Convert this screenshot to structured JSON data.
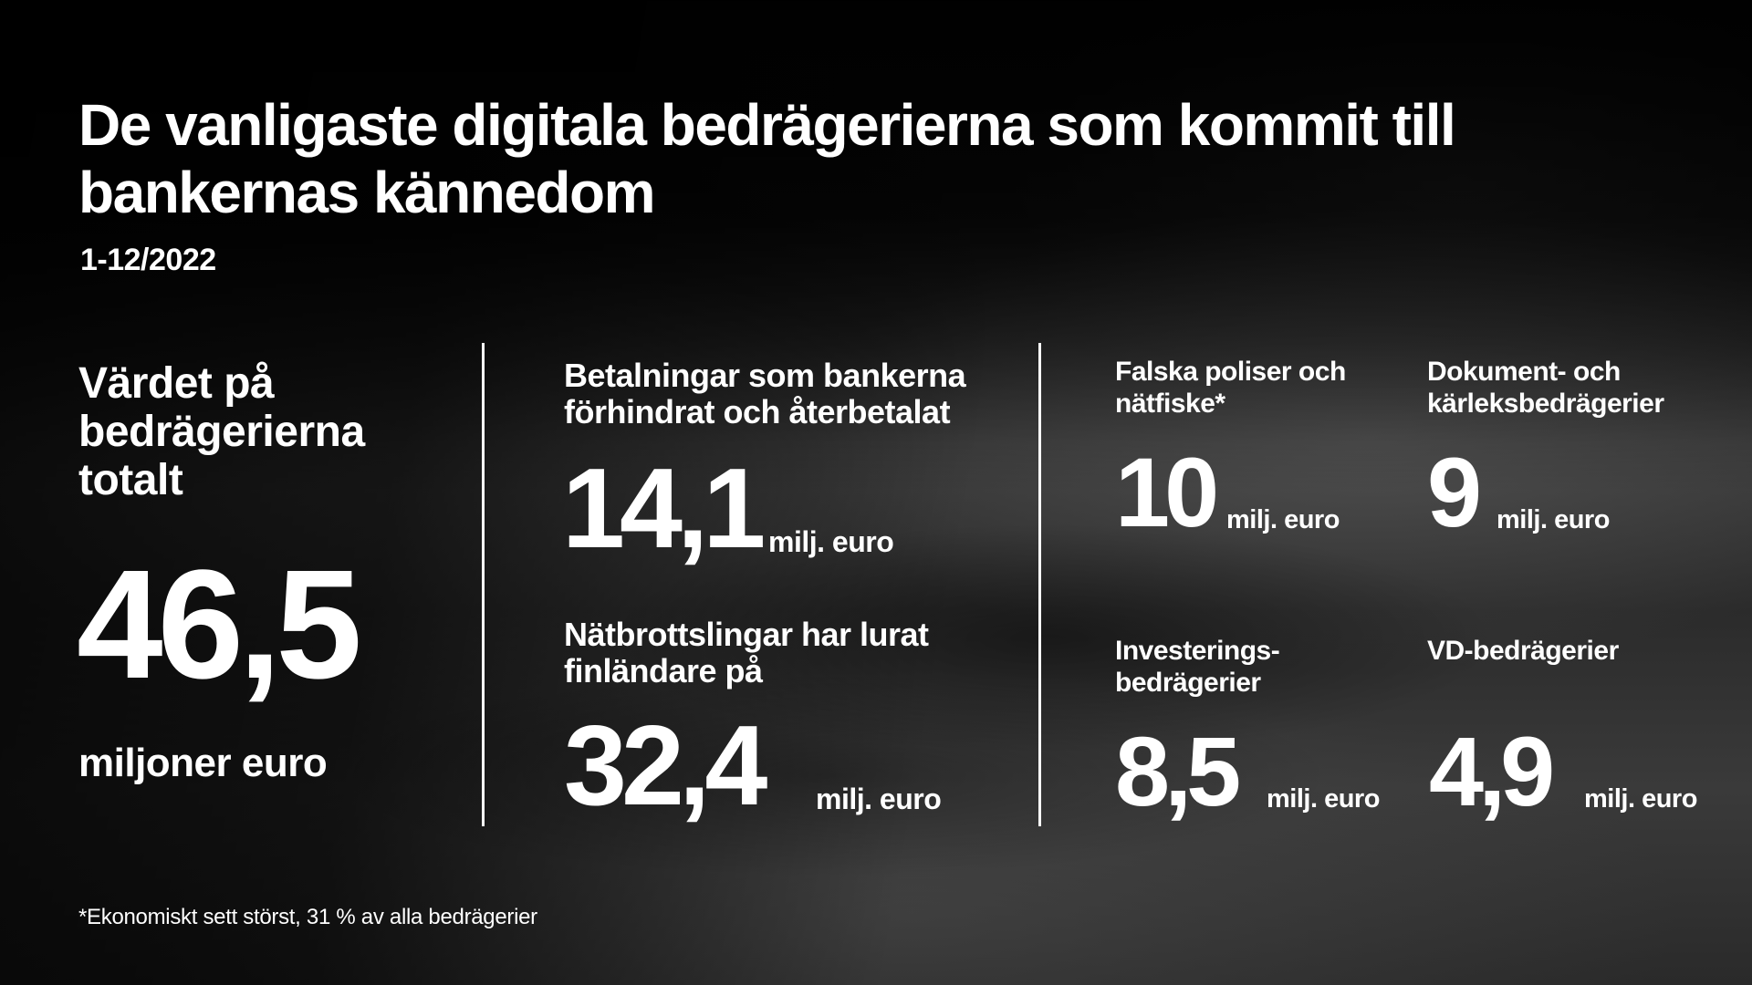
{
  "header": {
    "title": "De vanligaste digitala bedrägerierna som kommit till bankernas kännedom",
    "period": "1-12/2022"
  },
  "total": {
    "label": "Värdet på bedrägerierna totalt",
    "value": "46,5",
    "unit": "miljoner euro"
  },
  "middle": [
    {
      "label": "Betalningar som bankerna förhindrat och återbetalat",
      "value": "14,1",
      "unit": "milj. euro"
    },
    {
      "label": "Nätbrottslingar har lurat finländare på",
      "value": "32,4",
      "unit": "milj. euro"
    }
  ],
  "categories": [
    {
      "label": "Falska poliser och nätfiske*",
      "value": "10",
      "unit": "milj. euro"
    },
    {
      "label": "Dokument- och kärleksbedrägerier",
      "value": "9",
      "unit": "milj. euro"
    },
    {
      "label": "Investerings-bedrägerier",
      "value": "8,5",
      "unit": "milj. euro"
    },
    {
      "label": "VD-bedrägerier",
      "value": "4,9",
      "unit": "milj. euro"
    }
  ],
  "footnote": "*Ekonomiskt sett störst, 31 % av alla bedrägerier",
  "colors": {
    "text": "#ffffff",
    "background": "#2a2a2a"
  }
}
